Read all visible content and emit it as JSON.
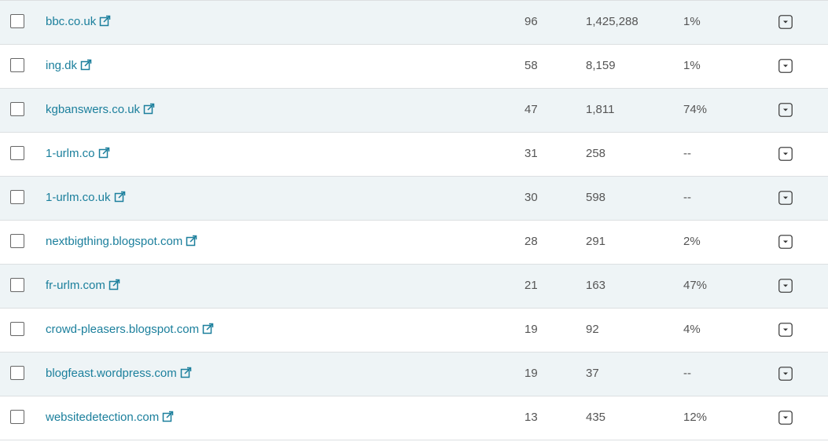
{
  "table": {
    "rows": [
      [
        "bbc.co.uk",
        "96",
        "1,425,288",
        "1%"
      ],
      [
        "ing.dk",
        "58",
        "8,159",
        "1%"
      ],
      [
        "kgbanswers.co.uk",
        "47",
        "1,811",
        "74%"
      ],
      [
        "1-urlm.co",
        "31",
        "258",
        "--"
      ],
      [
        "1-urlm.co.uk",
        "30",
        "598",
        "--"
      ],
      [
        "nextbigthing.blogspot.com",
        "28",
        "291",
        "2%"
      ],
      [
        "fr-urlm.com",
        "21",
        "163",
        "47%"
      ],
      [
        "crowd-pleasers.blogspot.com",
        "19",
        "92",
        "4%"
      ],
      [
        "blogfeast.wordpress.com",
        "19",
        "37",
        "--"
      ],
      [
        "websitedetection.com",
        "13",
        "435",
        "12%"
      ]
    ]
  }
}
